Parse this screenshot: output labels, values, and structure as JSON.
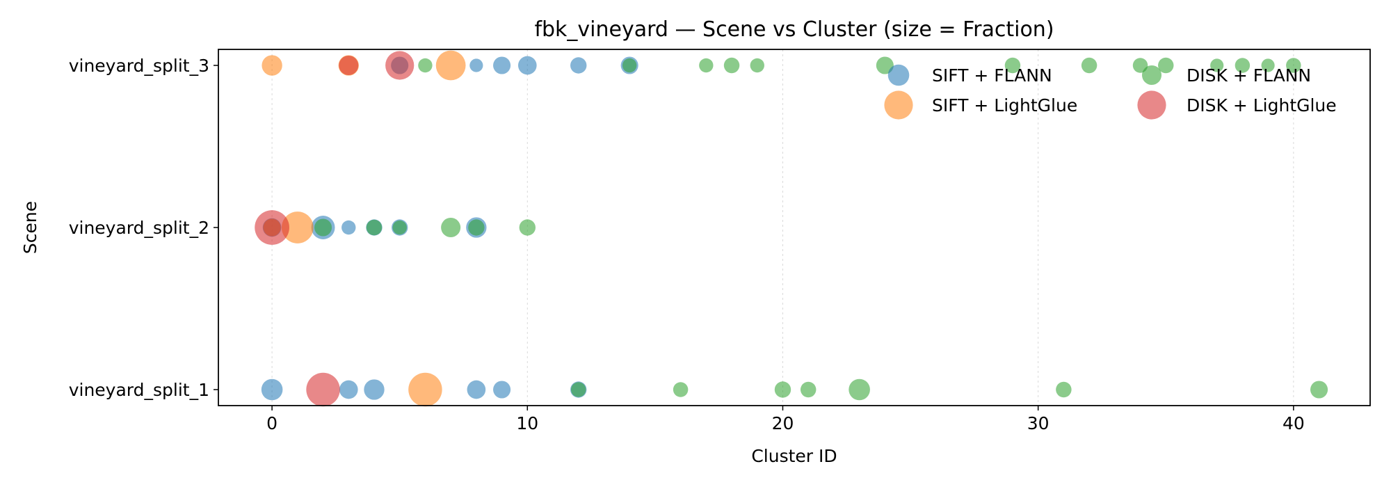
{
  "chart_data": {
    "type": "scatter",
    "title": "fbk_vineyard — Scene vs Cluster (size = Fraction)",
    "xlabel": "Cluster ID",
    "ylabel": "Scene",
    "xlim": [
      -2.1,
      43
    ],
    "xticks": [
      0,
      10,
      20,
      30,
      40
    ],
    "categories": [
      "vineyard_split_1",
      "vineyard_split_2",
      "vineyard_split_3"
    ],
    "grid": "x-dotted",
    "legend_position": "top-right",
    "series": [
      {
        "name": "SIFT + FLANN",
        "color": "#1f77b4",
        "legend_size": 0.09,
        "points": [
          {
            "x": 0,
            "scene": "vineyard_split_1",
            "fraction": 0.09
          },
          {
            "x": 3,
            "scene": "vineyard_split_1",
            "fraction": 0.06
          },
          {
            "x": 4,
            "scene": "vineyard_split_1",
            "fraction": 0.08
          },
          {
            "x": 8,
            "scene": "vineyard_split_1",
            "fraction": 0.06
          },
          {
            "x": 9,
            "scene": "vineyard_split_1",
            "fraction": 0.05
          },
          {
            "x": 12,
            "scene": "vineyard_split_1",
            "fraction": 0.04
          },
          {
            "x": 0,
            "scene": "vineyard_split_2",
            "fraction": 0.06
          },
          {
            "x": 2,
            "scene": "vineyard_split_2",
            "fraction": 0.12
          },
          {
            "x": 3,
            "scene": "vineyard_split_2",
            "fraction": 0.025
          },
          {
            "x": 4,
            "scene": "vineyard_split_2",
            "fraction": 0.04
          },
          {
            "x": 5,
            "scene": "vineyard_split_2",
            "fraction": 0.04
          },
          {
            "x": 8,
            "scene": "vineyard_split_2",
            "fraction": 0.08
          },
          {
            "x": 5,
            "scene": "vineyard_split_3",
            "fraction": 0.05
          },
          {
            "x": 8,
            "scene": "vineyard_split_3",
            "fraction": 0.02
          },
          {
            "x": 9,
            "scene": "vineyard_split_3",
            "fraction": 0.05
          },
          {
            "x": 10,
            "scene": "vineyard_split_3",
            "fraction": 0.06
          },
          {
            "x": 12,
            "scene": "vineyard_split_3",
            "fraction": 0.04
          },
          {
            "x": 14,
            "scene": "vineyard_split_3",
            "fraction": 0.05
          }
        ]
      },
      {
        "name": "SIFT + LightGlue",
        "color": "#ff7f0e",
        "legend_size": 0.2,
        "points": [
          {
            "x": 6,
            "scene": "vineyard_split_1",
            "fraction": 0.3
          },
          {
            "x": 0,
            "scene": "vineyard_split_2",
            "fraction": 0.05
          },
          {
            "x": 1,
            "scene": "vineyard_split_2",
            "fraction": 0.26
          },
          {
            "x": 0,
            "scene": "vineyard_split_3",
            "fraction": 0.08
          },
          {
            "x": 3,
            "scene": "vineyard_split_3",
            "fraction": 0.08
          },
          {
            "x": 7,
            "scene": "vineyard_split_3",
            "fraction": 0.22
          }
        ]
      },
      {
        "name": "DISK + FLANN",
        "color": "#2ca02c",
        "legend_size": 0.07,
        "points": [
          {
            "x": 12,
            "scene": "vineyard_split_1",
            "fraction": 0.03
          },
          {
            "x": 16,
            "scene": "vineyard_split_1",
            "fraction": 0.03
          },
          {
            "x": 20,
            "scene": "vineyard_split_1",
            "fraction": 0.04
          },
          {
            "x": 21,
            "scene": "vineyard_split_1",
            "fraction": 0.035
          },
          {
            "x": 23,
            "scene": "vineyard_split_1",
            "fraction": 0.09
          },
          {
            "x": 31,
            "scene": "vineyard_split_1",
            "fraction": 0.035
          },
          {
            "x": 41,
            "scene": "vineyard_split_1",
            "fraction": 0.05
          },
          {
            "x": 2,
            "scene": "vineyard_split_2",
            "fraction": 0.05
          },
          {
            "x": 4,
            "scene": "vineyard_split_2",
            "fraction": 0.035
          },
          {
            "x": 5,
            "scene": "vineyard_split_2",
            "fraction": 0.025
          },
          {
            "x": 7,
            "scene": "vineyard_split_2",
            "fraction": 0.07
          },
          {
            "x": 8,
            "scene": "vineyard_split_2",
            "fraction": 0.04
          },
          {
            "x": 10,
            "scene": "vineyard_split_2",
            "fraction": 0.04
          },
          {
            "x": 6,
            "scene": "vineyard_split_3",
            "fraction": 0.025
          },
          {
            "x": 14,
            "scene": "vineyard_split_3",
            "fraction": 0.025
          },
          {
            "x": 17,
            "scene": "vineyard_split_3",
            "fraction": 0.025
          },
          {
            "x": 18,
            "scene": "vineyard_split_3",
            "fraction": 0.035
          },
          {
            "x": 19,
            "scene": "vineyard_split_3",
            "fraction": 0.025
          },
          {
            "x": 24,
            "scene": "vineyard_split_3",
            "fraction": 0.05
          },
          {
            "x": 29,
            "scene": "vineyard_split_3",
            "fraction": 0.035
          },
          {
            "x": 32,
            "scene": "vineyard_split_3",
            "fraction": 0.035
          },
          {
            "x": 34,
            "scene": "vineyard_split_3",
            "fraction": 0.03
          },
          {
            "x": 35,
            "scene": "vineyard_split_3",
            "fraction": 0.035
          },
          {
            "x": 37,
            "scene": "vineyard_split_3",
            "fraction": 0.02
          },
          {
            "x": 38,
            "scene": "vineyard_split_3",
            "fraction": 0.03
          },
          {
            "x": 39,
            "scene": "vineyard_split_3",
            "fraction": 0.02
          },
          {
            "x": 40,
            "scene": "vineyard_split_3",
            "fraction": 0.03
          }
        ]
      },
      {
        "name": "DISK + LightGlue",
        "color": "#d62728",
        "legend_size": 0.2,
        "points": [
          {
            "x": 2,
            "scene": "vineyard_split_1",
            "fraction": 0.3
          },
          {
            "x": 0,
            "scene": "vineyard_split_2",
            "fraction": 0.32
          },
          {
            "x": 3,
            "scene": "vineyard_split_3",
            "fraction": 0.07
          },
          {
            "x": 5,
            "scene": "vineyard_split_3",
            "fraction": 0.2
          }
        ]
      }
    ]
  }
}
